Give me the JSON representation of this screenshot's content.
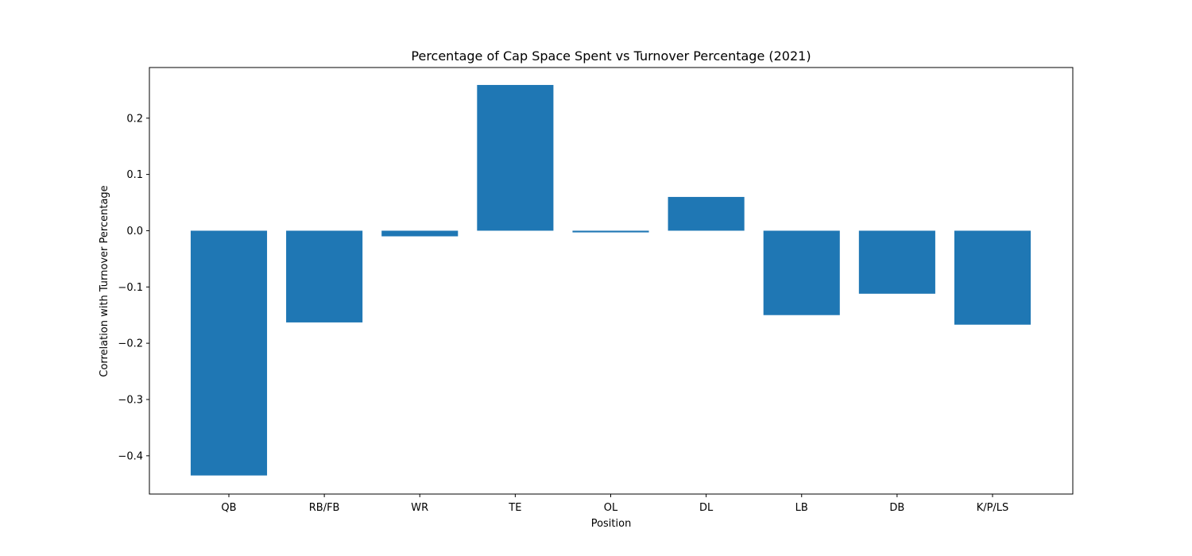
{
  "chart_data": {
    "type": "bar",
    "title": "Percentage of Cap Space Spent vs Turnover Percentage (2021)",
    "xlabel": "Position",
    "ylabel": "Correlation with Turnover Percentage",
    "categories": [
      "QB",
      "RB/FB",
      "WR",
      "TE",
      "OL",
      "DL",
      "LB",
      "DB",
      "K/P/LS"
    ],
    "values": [
      -0.435,
      -0.163,
      -0.01,
      0.259,
      -0.003,
      0.06,
      -0.15,
      -0.112,
      -0.167
    ],
    "ylim": [
      -0.468,
      0.29
    ],
    "yticks": [
      -0.4,
      -0.3,
      -0.2,
      -0.1,
      0.0,
      0.1,
      0.2
    ],
    "ytick_labels": [
      "−0.4",
      "−0.3",
      "−0.2",
      "−0.1",
      "0.0",
      "0.1",
      "0.2"
    ],
    "bar_color": "#1f77b4",
    "grid": false,
    "legend": "none"
  }
}
